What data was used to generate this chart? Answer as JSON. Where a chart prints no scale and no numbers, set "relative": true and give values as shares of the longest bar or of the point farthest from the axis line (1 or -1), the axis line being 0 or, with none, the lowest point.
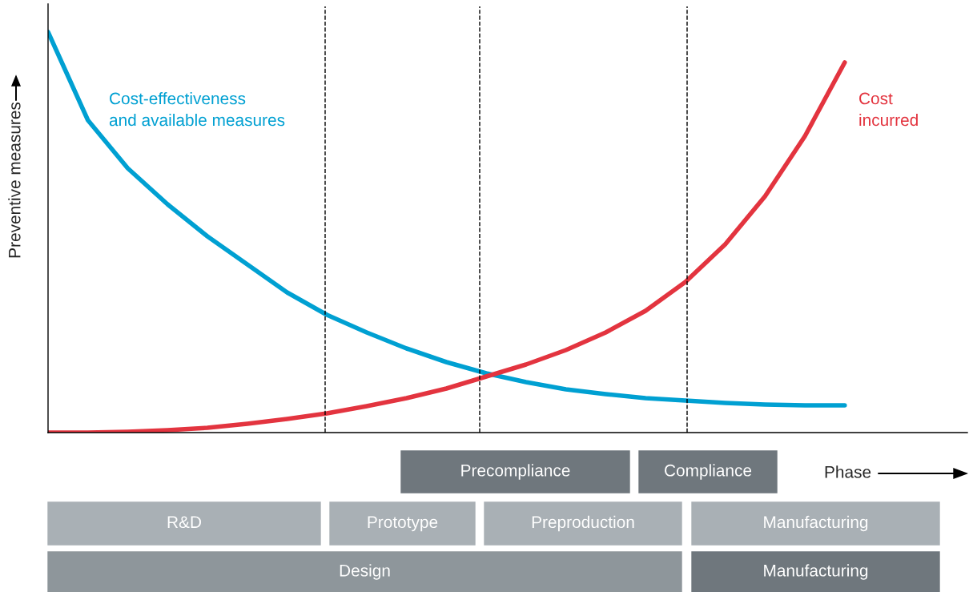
{
  "chart_data": {
    "type": "line",
    "relative": true,
    "ylabel": "Preventive measures",
    "xlabel": "Phase",
    "categories": [
      null,
      null,
      null,
      null,
      null,
      null,
      null,
      null,
      null,
      null,
      null,
      null,
      null,
      null,
      null,
      null,
      null,
      null,
      null,
      null,
      null
    ],
    "series": [
      {
        "name": "Cost-effectiveness\nand available measures",
        "color": "#00a0d2",
        "values": [
          1.0,
          0.78,
          0.66,
          0.57,
          0.49,
          0.42,
          0.35,
          0.294,
          0.25,
          0.21,
          0.176,
          0.148,
          0.126,
          0.108,
          0.096,
          0.086,
          0.08,
          0.074,
          0.07,
          0.068,
          0.068
        ]
      },
      {
        "name": "Cost\nincurred",
        "color": "#e3343f",
        "values": [
          0,
          0,
          0.002,
          0.006,
          0.012,
          0.022,
          0.034,
          0.048,
          0.066,
          0.086,
          0.11,
          0.14,
          0.17,
          0.206,
          0.25,
          0.304,
          0.376,
          0.47,
          0.59,
          0.74,
          0.924
        ]
      }
    ],
    "annotations": [
      "Precompliance",
      "Compliance",
      "R&D",
      "Prototype",
      "Preproduction",
      "Manufacturing",
      "Design",
      "Manufacturing"
    ],
    "legend": false,
    "line_style": "solid",
    "marker": "none"
  }
}
